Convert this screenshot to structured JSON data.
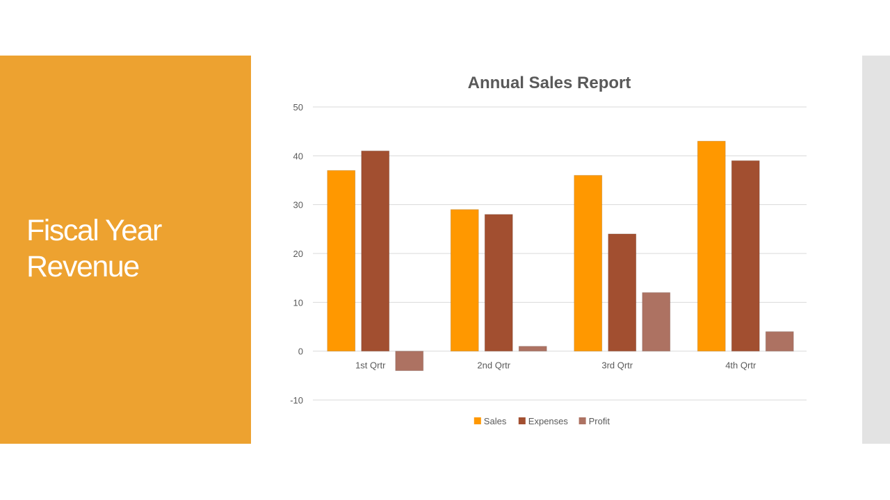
{
  "slide": {
    "title_line1": "Fiscal Year",
    "title_line2": "Revenue"
  },
  "colors": {
    "panel": "#eda230",
    "sales": "#ff9800",
    "expenses": "#a24f30",
    "profit": "#ad7262",
    "grid": "#d9d9d9",
    "text": "#595959"
  },
  "chart_data": {
    "type": "bar",
    "title": "Annual Sales Report",
    "categories": [
      "1st Qrtr",
      "2nd Qrtr",
      "3rd Qrtr",
      "4th Qrtr"
    ],
    "series": [
      {
        "name": "Sales",
        "values": [
          37,
          29,
          36,
          43
        ]
      },
      {
        "name": "Expenses",
        "values": [
          41,
          28,
          24,
          39
        ]
      },
      {
        "name": "Profit",
        "values": [
          -4,
          1,
          12,
          4
        ]
      }
    ],
    "yticks": [
      50,
      40,
      30,
      20,
      10,
      0,
      -10
    ],
    "ylim": [
      -10,
      50
    ],
    "grid": true,
    "legend": "bottom",
    "xlabel": "",
    "ylabel": ""
  }
}
